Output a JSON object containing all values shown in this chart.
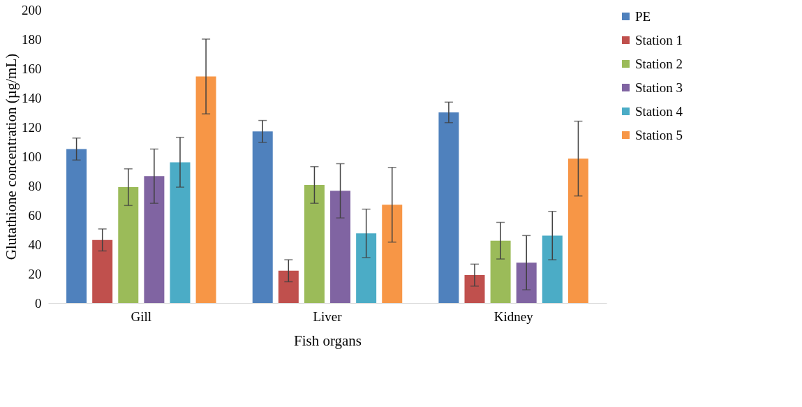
{
  "chart_data": {
    "type": "bar",
    "xlabel": "Fish organs",
    "ylabel": "Glutathione concentration (µg/mL)",
    "categories": [
      "Gill",
      "Liver",
      "Kidney"
    ],
    "ylim": [
      0,
      200
    ],
    "yticks": [
      0,
      20,
      40,
      60,
      80,
      100,
      120,
      140,
      160,
      180,
      200
    ],
    "grid": false,
    "legend": "right",
    "series": [
      {
        "name": "PE",
        "color": "#4f81bd",
        "values": [
          105,
          117,
          130
        ],
        "errors": [
          7.5,
          7.5,
          7
        ]
      },
      {
        "name": "Station 1",
        "color": "#c0504d",
        "values": [
          43,
          22,
          19
        ],
        "errors": [
          7.5,
          7.5,
          7.5
        ]
      },
      {
        "name": "Station 2",
        "color": "#9bbb59",
        "values": [
          79,
          80.5,
          42.5
        ],
        "errors": [
          12.5,
          12.5,
          12.5
        ]
      },
      {
        "name": "Station 3",
        "color": "#8064a2",
        "values": [
          86.5,
          76.5,
          27.5
        ],
        "errors": [
          18.5,
          18.5,
          18.5
        ]
      },
      {
        "name": "Station 4",
        "color": "#4bacc6",
        "values": [
          96,
          47.5,
          46
        ],
        "errors": [
          17,
          16.5,
          16.5
        ]
      },
      {
        "name": "Station 5",
        "color": "#f79646",
        "values": [
          154.5,
          67,
          98.5
        ],
        "errors": [
          25.5,
          25.5,
          25.5
        ]
      }
    ]
  }
}
